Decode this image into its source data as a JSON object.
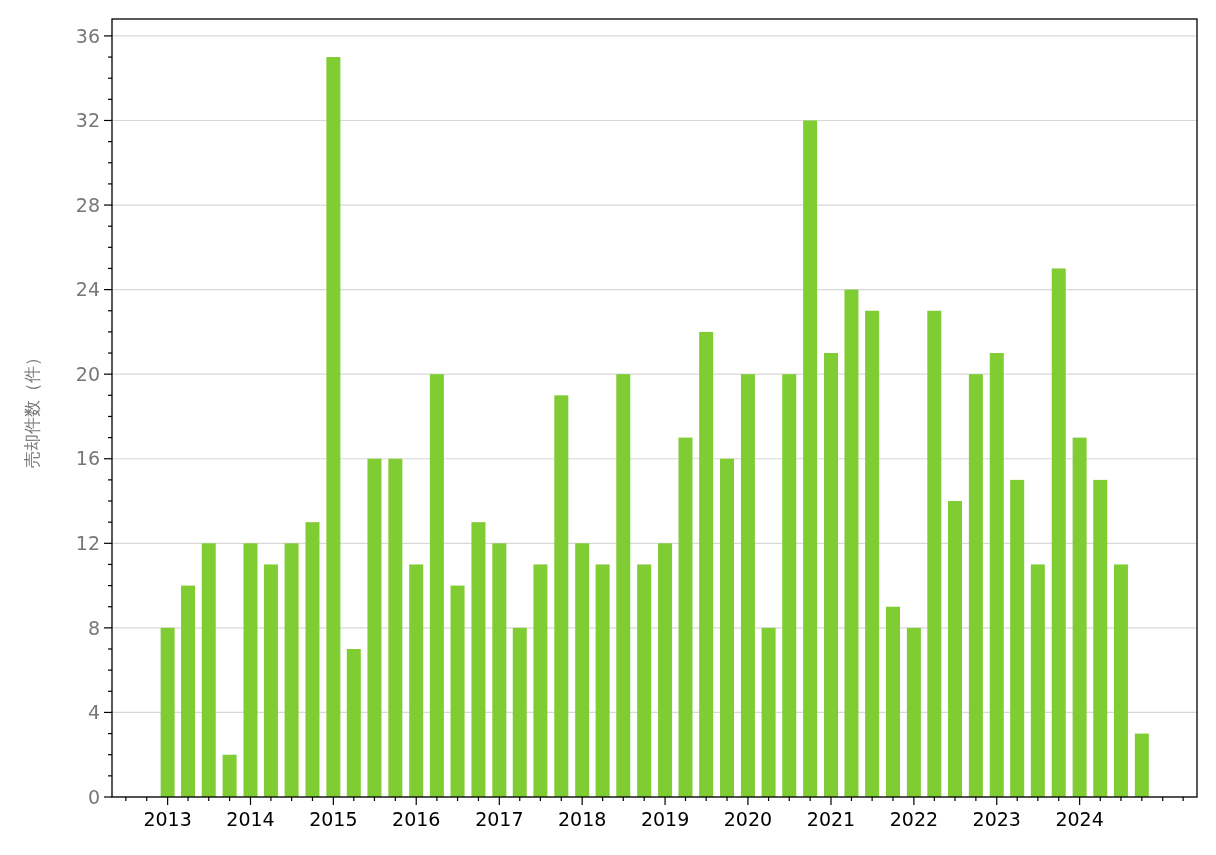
{
  "chart_data": {
    "type": "bar",
    "ylabel": "売却件数（件）",
    "color": "#7fcc33",
    "x": [
      "2013-01",
      "2013-04",
      "2013-07",
      "2013-10",
      "2014-01",
      "2014-04",
      "2014-07",
      "2014-10",
      "2015-01",
      "2015-04",
      "2015-07",
      "2015-10",
      "2016-01",
      "2016-04",
      "2016-07",
      "2016-10",
      "2017-01",
      "2017-04",
      "2017-07",
      "2017-10",
      "2018-01",
      "2018-04",
      "2018-07",
      "2018-10",
      "2019-01",
      "2019-04",
      "2019-07",
      "2019-10",
      "2020-01",
      "2020-04",
      "2020-07",
      "2020-10",
      "2021-01",
      "2021-04",
      "2021-07",
      "2021-10",
      "2022-01",
      "2022-04",
      "2022-07",
      "2022-10",
      "2023-01",
      "2023-04",
      "2023-07",
      "2023-10",
      "2024-01",
      "2024-04",
      "2024-07",
      "2024-10"
    ],
    "values": [
      8,
      10,
      12,
      2,
      12,
      11,
      12,
      13,
      35,
      7,
      16,
      16,
      11,
      20,
      10,
      13,
      12,
      8,
      11,
      19,
      12,
      11,
      20,
      11,
      12,
      17,
      22,
      16,
      20,
      8,
      20,
      32,
      21,
      24,
      23,
      9,
      8,
      23,
      14,
      20,
      21,
      15,
      11,
      25,
      17,
      15,
      11,
      3
    ],
    "xlim": [
      "2012-05",
      "2025-06"
    ],
    "xticks": [
      {
        "value": "2012-07",
        "label": null
      },
      {
        "value": "2012-10",
        "label": null
      },
      "2013",
      {
        "value": "2013-04",
        "label": null
      },
      {
        "value": "2013-07",
        "label": null
      },
      {
        "value": "2013-10",
        "label": null
      },
      "2014",
      {
        "value": "2014-04",
        "label": null
      },
      {
        "value": "2014-07",
        "label": null
      },
      {
        "value": "2014-10",
        "label": null
      },
      "2015",
      {
        "value": "2015-04",
        "label": null
      },
      {
        "value": "2015-07",
        "label": null
      },
      {
        "value": "2015-10",
        "label": null
      },
      "2016",
      {
        "value": "2016-04",
        "label": null
      },
      {
        "value": "2016-07",
        "label": null
      },
      {
        "value": "2016-10",
        "label": null
      },
      "2017",
      {
        "value": "2017-04",
        "label": null
      },
      {
        "value": "2017-07",
        "label": null
      },
      {
        "value": "2017-10",
        "label": null
      },
      "2018",
      {
        "value": "2018-04",
        "label": null
      },
      {
        "value": "2018-07",
        "label": null
      },
      {
        "value": "2018-10",
        "label": null
      },
      "2019",
      {
        "value": "2019-04",
        "label": null
      },
      {
        "value": "2019-07",
        "label": null
      },
      {
        "value": "2019-10",
        "label": null
      },
      "2020",
      {
        "value": "2020-04",
        "label": null
      },
      {
        "value": "2020-07",
        "label": null
      },
      {
        "value": "2020-10",
        "label": null
      },
      "2021",
      {
        "value": "2021-04",
        "label": null
      },
      {
        "value": "2021-07",
        "label": null
      },
      {
        "value": "2021-10",
        "label": null
      },
      "2022",
      {
        "value": "2022-04",
        "label": null
      },
      {
        "value": "2022-07",
        "label": null
      },
      {
        "value": "2022-10",
        "label": null
      },
      "2023",
      {
        "value": "2023-04",
        "label": null
      },
      {
        "value": "2023-07",
        "label": null
      },
      {
        "value": "2023-10",
        "label": null
      },
      "2024",
      {
        "value": "2024-04",
        "label": null
      },
      {
        "value": "2024-07",
        "label": null
      },
      {
        "value": "2024-10",
        "label": null
      },
      {
        "value": "2025-01",
        "label": null
      },
      {
        "value": "2025-04",
        "label": null
      }
    ],
    "ylim": [
      0,
      36.8
    ],
    "yticks": [
      0,
      {
        "value": 1,
        "label": null
      },
      {
        "value": 2,
        "label": null
      },
      {
        "value": 3,
        "label": null
      },
      4,
      {
        "value": 5,
        "label": null
      },
      {
        "value": 6,
        "label": null
      },
      {
        "value": 7,
        "label": null
      },
      8,
      {
        "value": 9,
        "label": null
      },
      {
        "value": 10,
        "label": null
      },
      {
        "value": 11,
        "label": null
      },
      12,
      {
        "value": 13,
        "label": null
      },
      {
        "value": 14,
        "label": null
      },
      {
        "value": 15,
        "label": null
      },
      16,
      {
        "value": 17,
        "label": null
      },
      {
        "value": 18,
        "label": null
      },
      {
        "value": 19,
        "label": null
      },
      20,
      {
        "value": 21,
        "label": null
      },
      {
        "value": 22,
        "label": null
      },
      {
        "value": 23,
        "label": null
      },
      24,
      {
        "value": 25,
        "label": null
      },
      {
        "value": 26,
        "label": null
      },
      {
        "value": 27,
        "label": null
      },
      28,
      {
        "value": 29,
        "label": null
      },
      {
        "value": 30,
        "label": null
      },
      {
        "value": 31,
        "label": null
      },
      32,
      {
        "value": 33,
        "label": null
      },
      {
        "value": 34,
        "label": null
      },
      {
        "value": 35,
        "label": null
      },
      36
    ],
    "grid": "y"
  }
}
